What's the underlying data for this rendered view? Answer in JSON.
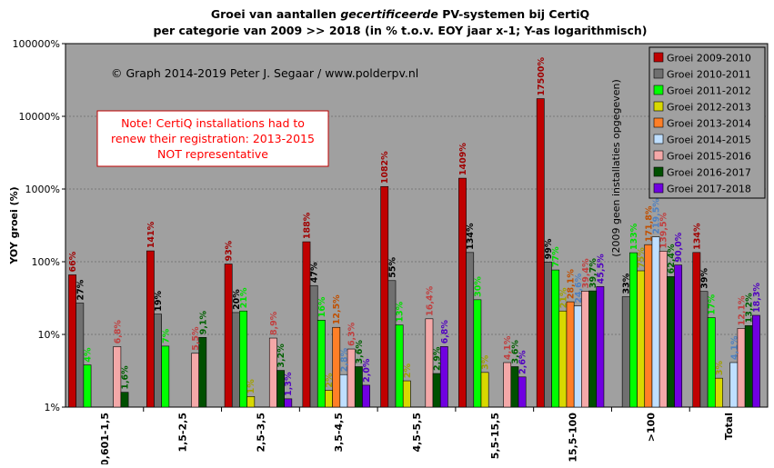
{
  "chart_data": {
    "type": "bar",
    "title_line1_prefix": "Groei  van aantallen ",
    "title_line1_italic": "gecertificeerde",
    "title_line1_suffix": "  PV-systemen bij CertiQ",
    "title_line2": "per categorie van 2009 >> 2018 (in % t.o.v. EOY jaar x-1; Y-as logarithmisch)",
    "ylabel": "YOY groei (%)",
    "yscale": "log",
    "ylim": [
      1,
      100000
    ],
    "yticks": [
      {
        "value": 1,
        "label": "1%"
      },
      {
        "value": 10,
        "label": "10%"
      },
      {
        "value": 100,
        "label": "100%"
      },
      {
        "value": 1000,
        "label": "1000%"
      },
      {
        "value": 10000,
        "label": "10000%"
      },
      {
        "value": 100000,
        "label": "100000%"
      }
    ],
    "categories": [
      "0,601-1,5",
      "1,5-2,5",
      "2,5-3,5",
      "3,5-4,5",
      "4,5-5,5",
      "5,5-15,5",
      "15,5-100",
      ">100",
      "Total"
    ],
    "legend_position": "top-right",
    "series": [
      {
        "name": "Groei 2009-2010",
        "color": "#c00000",
        "label_color": "#a00000",
        "values": [
          66,
          141,
          93,
          188,
          1082,
          1409,
          17500,
          null,
          134
        ],
        "labels": [
          "66%",
          "141%",
          "93%",
          "188%",
          "1082%",
          "1409%",
          "17500%",
          "",
          "134%"
        ]
      },
      {
        "name": "Groei 2010-2011",
        "color": "#707070",
        "label_color": "#000000",
        "values": [
          27,
          19,
          20,
          47,
          55,
          134,
          99,
          33,
          39
        ],
        "labels": [
          "27%",
          "19%",
          "20%",
          "47%",
          "55%",
          "134%",
          "99%",
          "33%",
          "39%"
        ]
      },
      {
        "name": "Groei 2011-2012",
        "color": "#00ff00",
        "label_color": "#00e000",
        "values": [
          3.8,
          6.9,
          21,
          15.7,
          13.5,
          30,
          77,
          133,
          17
        ],
        "labels": [
          "4%",
          "7%",
          "21%",
          "16%",
          "13%",
          "30%",
          "77%",
          "133%",
          "17%"
        ]
      },
      {
        "name": "Groei 2012-2013",
        "color": "#d8d800",
        "label_color": "#a0a000",
        "values": [
          null,
          null,
          1.4,
          1.7,
          2.3,
          3.0,
          21,
          75,
          2.5
        ],
        "labels": [
          "",
          "",
          "1%",
          "2%",
          "2%",
          "3%",
          "21%",
          "75%",
          "3%"
        ]
      },
      {
        "name": "Groei 2013-2014",
        "color": "#ff7f27",
        "label_color": "#c05000",
        "values": [
          null,
          null,
          null,
          12.5,
          null,
          null,
          28.1,
          171.8,
          null
        ],
        "labels": [
          "",
          "",
          "",
          "12,5%",
          "",
          "",
          "28,1%",
          "171,8%",
          ""
        ]
      },
      {
        "name": "Groei 2014-2015",
        "color": "#bfdfff",
        "label_color": "#5080c0",
        "values": [
          null,
          null,
          null,
          2.8,
          null,
          null,
          24.6,
          219.5,
          4.1
        ],
        "labels": [
          "",
          "",
          "",
          "2,8%",
          "",
          "",
          "24,6%",
          "219,5%",
          "4,1%"
        ]
      },
      {
        "name": "Groei 2015-2016",
        "color": "#f4a8a8",
        "label_color": "#c04040",
        "values": [
          6.8,
          5.5,
          8.9,
          6.3,
          16.4,
          4.1,
          39.4,
          139.5,
          12.1
        ],
        "labels": [
          "6,8%",
          "5,5%",
          "8,9%",
          "6,3%",
          "16,4%",
          "4,1%",
          "39,4%",
          "139,5%",
          "12,1%"
        ]
      },
      {
        "name": "Groei 2016-2017",
        "color": "#005000",
        "label_color": "#006000",
        "values": [
          1.6,
          9.1,
          3.2,
          3.6,
          2.9,
          3.6,
          39.7,
          62.4,
          13.2
        ],
        "labels": [
          "1,6%",
          "9,1%",
          "3,2%",
          "3,6%",
          "2,9%",
          "3,6%",
          "39,7%",
          "62,4%",
          "13,2%"
        ]
      },
      {
        "name": "Groei 2017-2018",
        "color": "#7000e0",
        "label_color": "#5000c0",
        "values": [
          null,
          null,
          1.3,
          2.0,
          6.8,
          2.6,
          45.5,
          90.0,
          18.3
        ],
        "labels": [
          "",
          "",
          "1,3%",
          "2,0%",
          "6,8%",
          "2,6%",
          "45,5%",
          "90,0%",
          "18,3%"
        ]
      }
    ],
    "annotations": {
      "copyright": "© Graph  2014-2019  Peter  J.  Segaar  /  www.polderpv.nl",
      "note_lines": [
        "Note! CertiQ installations had to",
        "renew their registration: 2013-2015",
        "NOT representative"
      ],
      "note_color": "#ff0000",
      "vertical_note": "(2009 geen installaties opgegeven)"
    },
    "colors": {
      "plot_background": "#a0a0a0",
      "grid": "#777777"
    }
  }
}
